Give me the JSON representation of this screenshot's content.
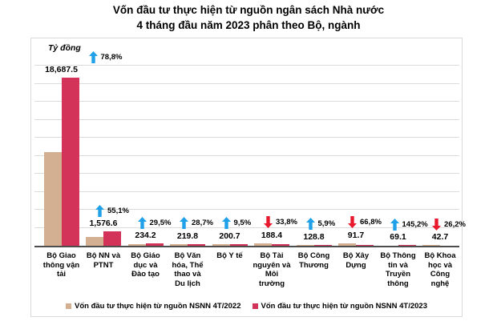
{
  "title": {
    "line1": "Vốn đầu tư thực hiện từ nguồn ngân sách Nhà nước",
    "line2": "4 tháng đầu năm 2023 phân theo Bộ, ngành"
  },
  "chart_data": {
    "type": "bar",
    "title": "Vốn đầu tư thực hiện từ nguồn ngân sách Nhà nước 4 tháng đầu năm 2023 phân theo Bộ, ngành",
    "ylabel": "Tỷ đồng",
    "ylim": [
      0,
      20000
    ],
    "gridline_step": 2000,
    "grid": true,
    "legend_position": "bottom",
    "categories": [
      "Bộ Giao thông vận tải",
      "Bộ NN và PTNT",
      "Bộ Giáo dục và Đào tạo",
      "Bộ Văn hóa, Thể thao và Du lịch",
      "Bộ Y tế",
      "Bộ Tài nguyên và Môi trường",
      "Bộ Công Thương",
      "Bộ Xây Dựng",
      "Bộ Thông tin và Truyền thông",
      "Bộ Khoa học và Công nghệ"
    ],
    "tick_labels": [
      "Bộ Giao\nthông vận\ntải",
      "Bộ NN và\nPTNT",
      "Bộ Giáo\ndục và\nĐào tạo",
      "Bộ Văn\nhóa, Thể\nthao và\nDu lịch",
      "Bộ Y tế",
      "Bộ Tài\nnguyên và\nMôi\ntrường",
      "Bộ Công\nThương",
      "Bộ Xây\nDựng",
      "Bộ Thông\ntin và\nTruyền\nthông",
      "Bộ Khoa\nhọc và\nCông\nnghệ"
    ],
    "series": [
      {
        "name": "Vốn đầu tư thực hiện từ nguồn NSNN 4T/2022",
        "color": "#d3b091",
        "values": [
          10452,
          1017,
          181,
          171,
          183,
          285,
          122,
          276,
          28,
          58
        ]
      },
      {
        "name": "Vốn đầu tư thực hiện từ nguồn NSNN 4T/2023",
        "color": "#d43359",
        "values": [
          18687.5,
          1576.6,
          234.2,
          219.8,
          200.7,
          188.4,
          128.8,
          91.7,
          69.1,
          42.7
        ]
      }
    ],
    "value_labels": [
      "18,687.5",
      "1,576.6",
      "234.2",
      "219.8",
      "200.7",
      "188.4",
      "128.8",
      "91.7",
      "69.1",
      "42.7"
    ],
    "pct_changes": [
      {
        "label": "78,8%",
        "direction": "up"
      },
      {
        "label": "55,1%",
        "direction": "up"
      },
      {
        "label": "29,5%",
        "direction": "up"
      },
      {
        "label": "28,7%",
        "direction": "up"
      },
      {
        "label": "9,5%",
        "direction": "up"
      },
      {
        "label": "33,8%",
        "direction": "down"
      },
      {
        "label": "5,9%",
        "direction": "up"
      },
      {
        "label": "66,8%",
        "direction": "down"
      },
      {
        "label": "145,2%",
        "direction": "up"
      },
      {
        "label": "26,2%",
        "direction": "down"
      }
    ]
  },
  "colors": {
    "up_arrow": "#1fa0e8",
    "down_arrow": "#e8192d",
    "gridline": "#dbdbdb",
    "axis_line": "#4d4d4d",
    "text": "#000000",
    "panel_border": "#d9d9d9"
  }
}
